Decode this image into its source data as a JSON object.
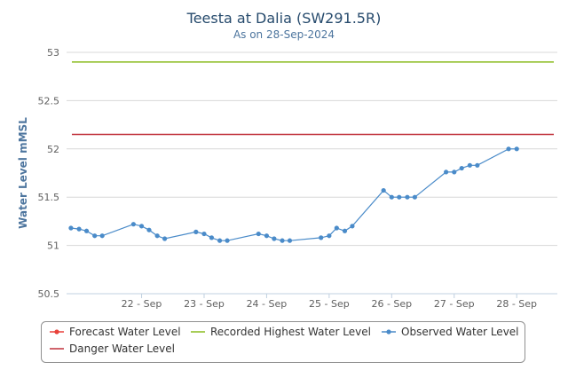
{
  "chart_data": {
    "type": "line",
    "title": "Teesta at Dalia (SW291.5R)",
    "subtitle": "As on 28-Sep-2024",
    "ylabel": "Water Level mMSL",
    "xlabel": "",
    "ylim": [
      50.5,
      53
    ],
    "y_ticks": [
      "50.5",
      "51",
      "51.5",
      "52",
      "52.5",
      "53"
    ],
    "y_tick_values": [
      50.5,
      51,
      51.5,
      52,
      52.5,
      53
    ],
    "x_range": [
      21.3,
      29.15
    ],
    "x_ticks": [
      {
        "label": "22 - Sep",
        "value": 22.5
      },
      {
        "label": "23 - Sep",
        "value": 23.5
      },
      {
        "label": "24 - Sep",
        "value": 24.5
      },
      {
        "label": "25 - Sep",
        "value": 25.5
      },
      {
        "label": "26 - Sep",
        "value": 26.5
      },
      {
        "label": "27 - Sep",
        "value": 27.5
      },
      {
        "label": "28 - Sep",
        "value": 28.5
      }
    ],
    "grid": true,
    "legend_position": "bottom",
    "series": [
      {
        "name": "Forecast Water Level",
        "color": "#e8413a",
        "kind": "marker-line",
        "values": []
      },
      {
        "name": "Recorded Highest Water Level",
        "color": "#8bbc21",
        "kind": "constant",
        "value": 52.9
      },
      {
        "name": "Observed Water Level",
        "color": "#4a8bc9",
        "kind": "marker-line",
        "x": [
          21.37,
          21.5,
          21.62,
          21.75,
          21.87,
          22.37,
          22.5,
          22.62,
          22.75,
          22.87,
          23.37,
          23.5,
          23.62,
          23.75,
          23.87,
          24.37,
          24.5,
          24.62,
          24.75,
          24.87,
          25.37,
          25.5,
          25.62,
          25.75,
          25.87,
          26.37,
          26.5,
          26.62,
          26.75,
          26.87,
          27.37,
          27.5,
          27.62,
          27.75,
          27.87,
          28.37,
          28.5
        ],
        "values": [
          51.18,
          51.17,
          51.15,
          51.1,
          51.1,
          51.22,
          51.2,
          51.16,
          51.1,
          51.07,
          51.14,
          51.12,
          51.08,
          51.05,
          51.05,
          51.12,
          51.1,
          51.07,
          51.05,
          51.05,
          51.08,
          51.1,
          51.18,
          51.15,
          51.2,
          51.57,
          51.5,
          51.5,
          51.5,
          51.5,
          51.76,
          51.76,
          51.8,
          51.83,
          51.83,
          52.0,
          52.0
        ]
      },
      {
        "name": "Danger Water Level",
        "color": "#c0313a",
        "kind": "constant",
        "value": 52.15
      }
    ]
  }
}
